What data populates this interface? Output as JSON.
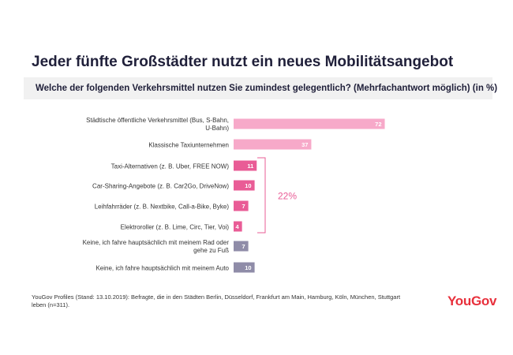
{
  "title": "Jeder fünfte Großstädter nutzt ein neues Mobilitätsangebot",
  "subtitle": "Welche der folgenden Verkehrsmittel nutzen Sie zumindest gelegentlich? (Mehrfachantwort möglich) (in %)",
  "footnote": "YouGov Profiles (Stand: 13.10.2019): Befragte, die in den Städten Berlin, Düsseldorf, Frankfurt am Main, Hamburg, Köln, München, Stuttgart leben (n=311).",
  "logo": "YouGov",
  "colors": {
    "light_pink": "#f7a9c9",
    "dark_pink": "#e95c96",
    "gray": "#8f8ca8",
    "bracket": "#e95c96",
    "bracket_label": "#e95c96"
  },
  "chart_data": {
    "type": "bar",
    "orientation": "horizontal",
    "title": "Welche der folgenden Verkehrsmittel nutzen Sie zumindest gelegentlich? (Mehrfachantwort möglich) (in %)",
    "unit": "%",
    "categories": [
      "Städtische öffentliche Verkehrsmittel (Bus, S-Bahn, U-Bahn)",
      "Klassische Taxiunternehmen",
      "Taxi-Alternativen (z. B. Uber, FREE NOW)",
      "Car-Sharing-Angebote (z. B. Car2Go, DriveNow)",
      "Leihfahrräder (z. B. Nextbike, Call-a-Bike, Byke)",
      "Elektroroller (z. B. Lime, Circ, Tier, Voi)",
      "Keine, ich fahre hauptsächlich mit meinem Rad oder gehe zu Fuß",
      "Keine, ich fahre hauptsächlich mit meinem Auto"
    ],
    "values": [
      72,
      37,
      11,
      10,
      7,
      4,
      7,
      10
    ],
    "groups": [
      "classic",
      "classic",
      "new",
      "new",
      "new",
      "new",
      "none",
      "none"
    ],
    "bracket": {
      "from_index": 2,
      "to_index": 5,
      "label": "22%"
    },
    "xlim": [
      0,
      100
    ]
  }
}
